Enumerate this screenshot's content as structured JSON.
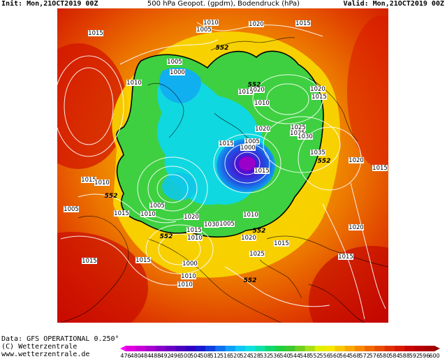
{
  "header": {
    "init": "Init: Mon,21OCT2019 00Z",
    "title": "500 hPa Geopot. (gpdm), Bodendruck (hPa)",
    "valid": "Valid: Mon,21OCT2019 00Z"
  },
  "footer": {
    "data_line": "Data: GFS OPERATIONAL 0.250°",
    "copyright": "(C) Wetterzentrale",
    "url": "www.wetterzentrale.de"
  },
  "colorbar": {
    "ticks": [
      "476",
      "480",
      "484",
      "488",
      "492",
      "496",
      "500",
      "504",
      "508",
      "512",
      "516",
      "520",
      "524",
      "528",
      "532",
      "536",
      "540",
      "544",
      "548",
      "552",
      "556",
      "560",
      "564",
      "568",
      "572",
      "576",
      "580",
      "584",
      "588",
      "592",
      "596",
      "600"
    ],
    "colors": [
      "#e000e0",
      "#c800d8",
      "#a800d0",
      "#8800c8",
      "#6a00c4",
      "#4c00c0",
      "#3000c4",
      "#1a1ad0",
      "#1040e0",
      "#1070f0",
      "#10a0f8",
      "#10c8f8",
      "#10e0e0",
      "#10e0a8",
      "#10d870",
      "#20d040",
      "#40c830",
      "#70d020",
      "#a8e018",
      "#e0f000",
      "#f8e800",
      "#f8c800",
      "#f8a800",
      "#f88800",
      "#f06800",
      "#e84c00",
      "#e03000",
      "#d81800",
      "#c80800",
      "#b80000",
      "#a80000"
    ],
    "accent_isoline": "#000000"
  },
  "map": {
    "pressure_labels": [
      {
        "text": "1015"
      },
      {
        "text": "1010"
      },
      {
        "text": "1005"
      },
      {
        "text": "1020"
      },
      {
        "text": "1005"
      },
      {
        "text": "1000"
      },
      {
        "text": "1010"
      },
      {
        "text": "1015"
      },
      {
        "text": "1020"
      },
      {
        "text": "1015"
      },
      {
        "text": "1020"
      },
      {
        "text": "1015"
      },
      {
        "text": "1010"
      },
      {
        "text": "1015"
      },
      {
        "text": "1020"
      },
      {
        "text": "1025"
      },
      {
        "text": "1000"
      },
      {
        "text": "1005"
      },
      {
        "text": "1015"
      },
      {
        "text": "1025"
      },
      {
        "text": "1030"
      },
      {
        "text": "1035"
      },
      {
        "text": "1020"
      },
      {
        "text": "1015"
      },
      {
        "text": "1015"
      },
      {
        "text": "1010"
      },
      {
        "text": "1005"
      },
      {
        "text": "1015"
      },
      {
        "text": "1005"
      },
      {
        "text": "1010"
      },
      {
        "text": "1020"
      },
      {
        "text": "1015"
      },
      {
        "text": "1010"
      },
      {
        "text": "1030"
      },
      {
        "text": "1005"
      },
      {
        "text": "1010"
      },
      {
        "text": "1015"
      },
      {
        "text": "1020"
      },
      {
        "text": "1025"
      },
      {
        "text": "1000"
      },
      {
        "text": "1010"
      },
      {
        "text": "1010"
      },
      {
        "text": "1015"
      },
      {
        "text": "1015"
      },
      {
        "text": "1020"
      },
      {
        "text": "1015"
      },
      {
        "text": "1010"
      },
      {
        "text": "1015"
      }
    ],
    "geopotential_labels": [
      {
        "text": "552"
      },
      {
        "text": "552"
      },
      {
        "text": "552"
      },
      {
        "text": "552"
      },
      {
        "text": "552"
      },
      {
        "text": "552"
      },
      {
        "text": "552"
      }
    ]
  }
}
